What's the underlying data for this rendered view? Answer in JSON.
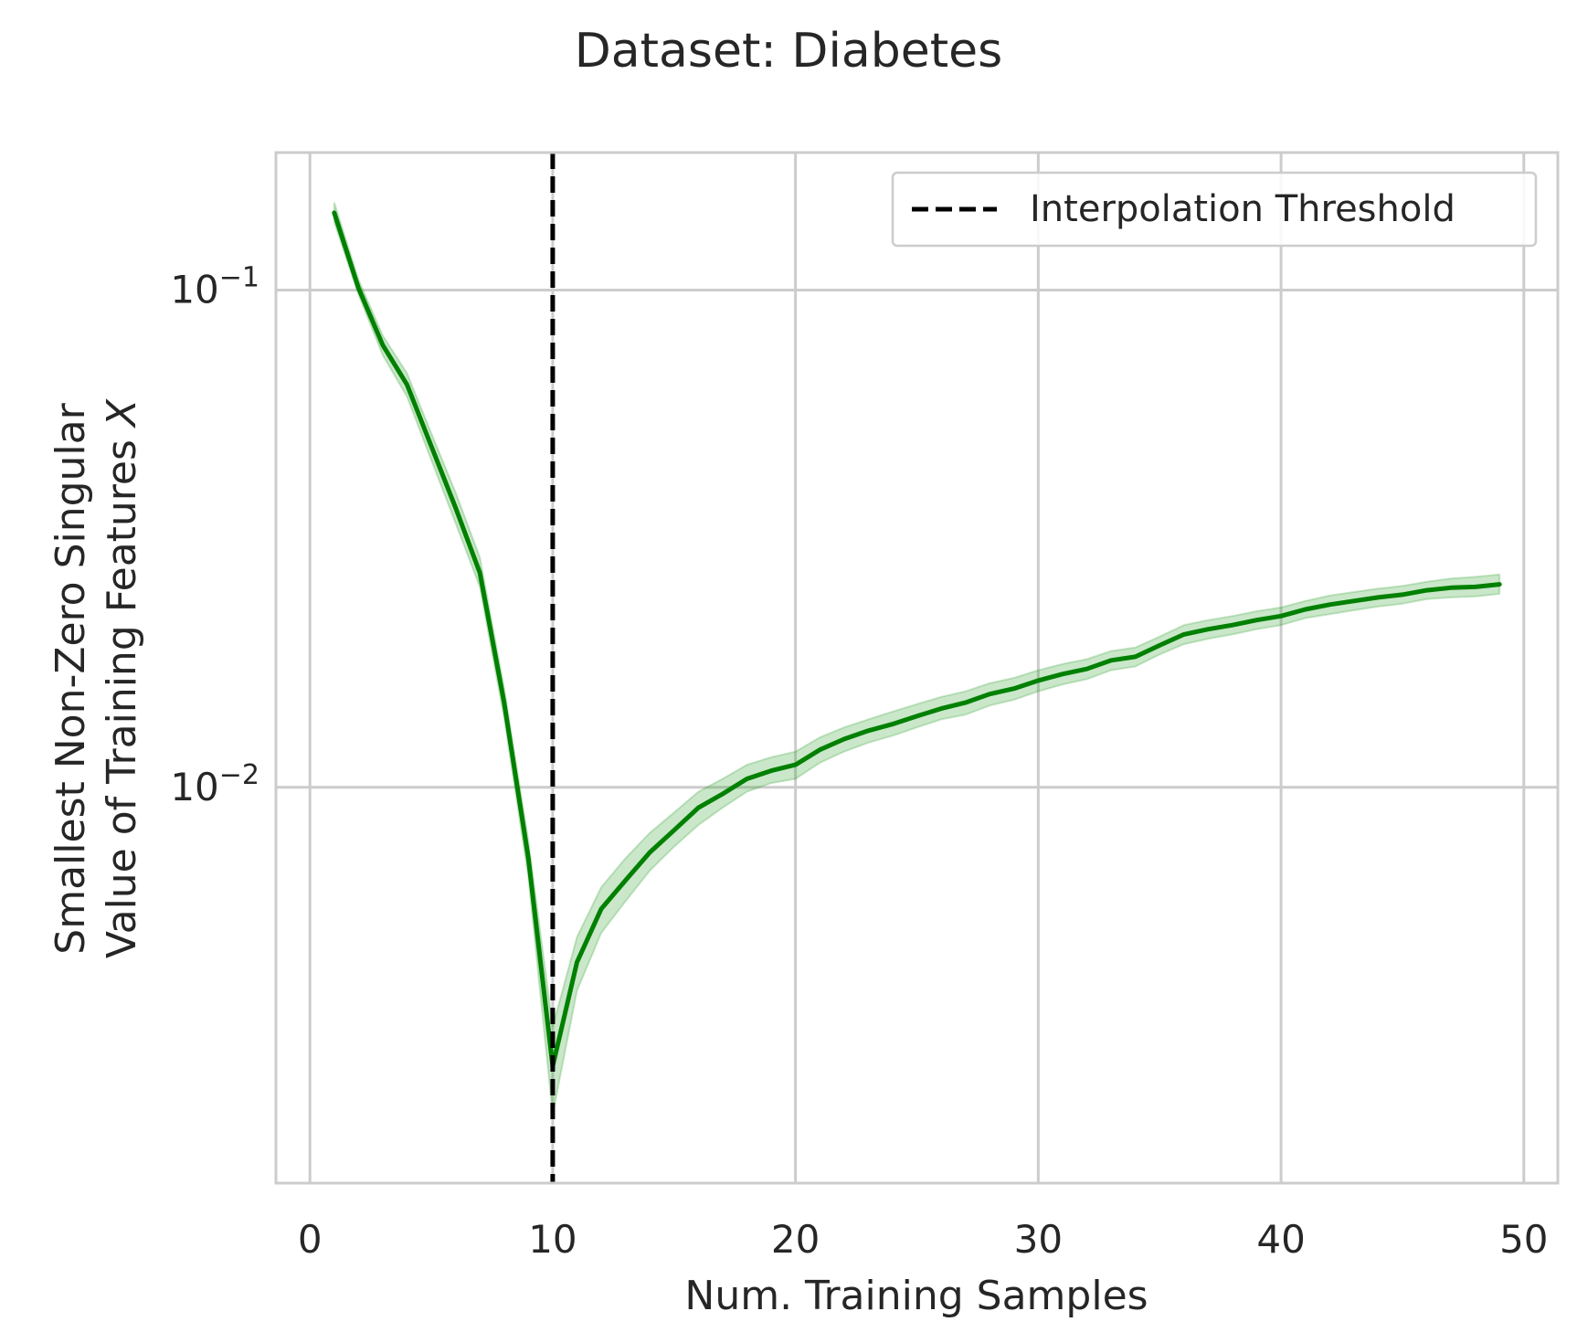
{
  "chart_data": {
    "type": "line",
    "title": "Dataset: Diabetes",
    "xlabel": "Num. Training Samples",
    "ylabel_line1": "Smallest Non-Zero Singular",
    "ylabel_line2": "Value of Training Features",
    "ylabel_var": "X",
    "xlim": [
      -1.4,
      51.4
    ],
    "ylim": [
      0.0016,
      0.189
    ],
    "yscale": "log",
    "grid": true,
    "legend_position": "top-right",
    "xticks": [
      0,
      10,
      20,
      30,
      40,
      50
    ],
    "xtick_labels": [
      "0",
      "10",
      "20",
      "30",
      "40",
      "50"
    ],
    "yticks": [
      0.1,
      0.01
    ],
    "ytick_labels": [
      {
        "base": "10",
        "exp": "−1"
      },
      {
        "base": "10",
        "exp": "−2"
      }
    ],
    "series": [
      {
        "name": "",
        "color": "#008000",
        "band_color": "#2ca02c",
        "x": [
          1,
          2,
          3,
          4,
          5,
          6,
          7,
          8,
          9,
          10,
          11,
          12,
          13,
          14,
          15,
          16,
          17,
          18,
          19,
          20,
          21,
          22,
          23,
          24,
          25,
          26,
          27,
          28,
          29,
          30,
          31,
          32,
          33,
          34,
          35,
          36,
          37,
          38,
          39,
          40,
          41,
          42,
          43,
          44,
          45,
          46,
          47,
          48,
          49
        ],
        "y": [
          0.143,
          0.101,
          0.0775,
          0.0645,
          0.0485,
          0.0365,
          0.027,
          0.0148,
          0.0072,
          0.00275,
          0.00445,
          0.0057,
          0.0065,
          0.0074,
          0.0082,
          0.0091,
          0.0097,
          0.0104,
          0.0108,
          0.0111,
          0.0119,
          0.0125,
          0.013,
          0.0134,
          0.0139,
          0.0144,
          0.0148,
          0.0154,
          0.0158,
          0.0164,
          0.0169,
          0.0173,
          0.018,
          0.0183,
          0.0193,
          0.0203,
          0.0208,
          0.0212,
          0.0217,
          0.0221,
          0.0228,
          0.0233,
          0.0237,
          0.0241,
          0.0244,
          0.0249,
          0.0252,
          0.0253,
          0.0256
        ],
        "y_lower": [
          0.137,
          0.098,
          0.074,
          0.061,
          0.0455,
          0.034,
          0.0253,
          0.0138,
          0.0066,
          0.0022,
          0.0039,
          0.0051,
          0.0059,
          0.0068,
          0.0076,
          0.0084,
          0.0091,
          0.0098,
          0.0102,
          0.0104,
          0.0112,
          0.0118,
          0.0123,
          0.0127,
          0.0132,
          0.0137,
          0.014,
          0.0146,
          0.015,
          0.0156,
          0.0161,
          0.0165,
          0.0172,
          0.0175,
          0.0185,
          0.0194,
          0.0199,
          0.0203,
          0.0208,
          0.0212,
          0.0219,
          0.0223,
          0.0227,
          0.0231,
          0.0234,
          0.0239,
          0.0241,
          0.0242,
          0.0245
        ],
        "y_upper": [
          0.15,
          0.105,
          0.081,
          0.068,
          0.0515,
          0.0392,
          0.029,
          0.0158,
          0.0078,
          0.0033,
          0.005,
          0.0063,
          0.0072,
          0.0081,
          0.0089,
          0.0098,
          0.0104,
          0.0111,
          0.0115,
          0.0118,
          0.0126,
          0.0132,
          0.0137,
          0.0142,
          0.0147,
          0.0152,
          0.0156,
          0.0162,
          0.0166,
          0.0172,
          0.0177,
          0.0181,
          0.0188,
          0.0191,
          0.0201,
          0.0212,
          0.0217,
          0.0221,
          0.0226,
          0.023,
          0.0237,
          0.0243,
          0.0247,
          0.0251,
          0.0254,
          0.0259,
          0.0263,
          0.0265,
          0.0268
        ]
      }
    ],
    "vline": {
      "x": 10,
      "label": "Interpolation Threshold",
      "color": "#000000"
    }
  }
}
